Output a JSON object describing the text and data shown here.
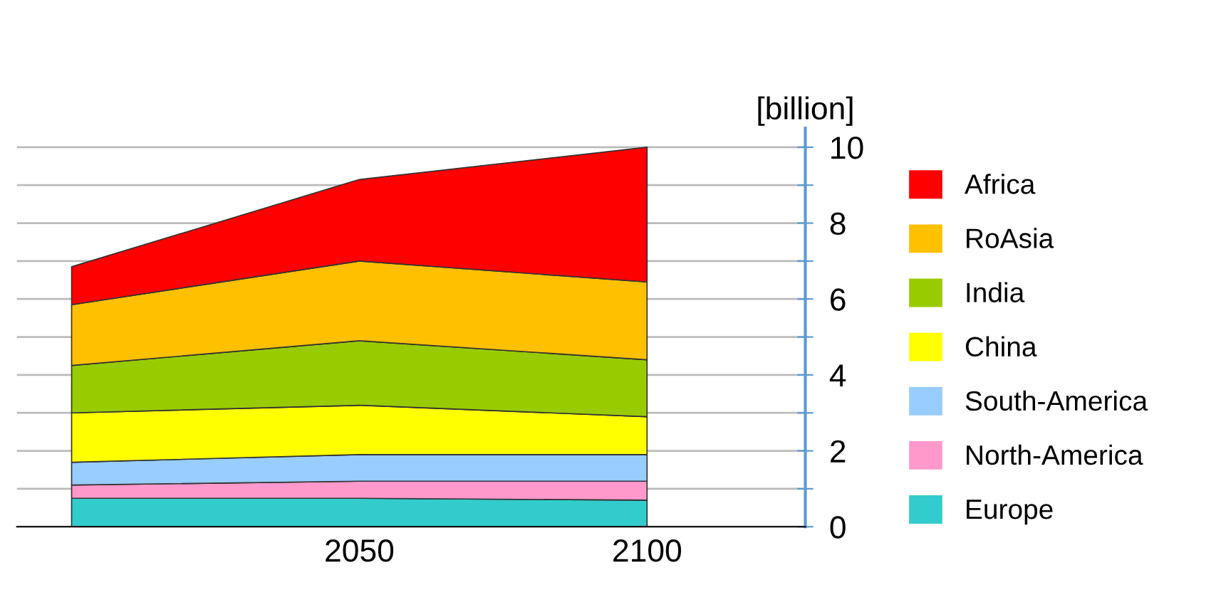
{
  "chart_data": {
    "type": "area",
    "stacked": true,
    "ylabel": "[billion]",
    "categories": [
      null,
      "2050",
      "2100"
    ],
    "series": [
      {
        "name": "Europe",
        "color": "#33cccc",
        "values": [
          0.75,
          0.75,
          0.7
        ]
      },
      {
        "name": "North-America",
        "color": "#ff99cc",
        "values": [
          0.35,
          0.45,
          0.5
        ]
      },
      {
        "name": "South-America",
        "color": "#99ccff",
        "values": [
          0.6,
          0.7,
          0.7
        ]
      },
      {
        "name": "China",
        "color": "#ffff00",
        "values": [
          1.3,
          1.3,
          1.0
        ]
      },
      {
        "name": "India",
        "color": "#99cc00",
        "values": [
          1.25,
          1.7,
          1.5
        ]
      },
      {
        "name": "RoAsia",
        "color": "#ffc000",
        "values": [
          1.6,
          2.1,
          2.05
        ]
      },
      {
        "name": "Africa",
        "color": "#ff0000",
        "values": [
          1.0,
          2.15,
          3.55
        ]
      }
    ],
    "ylim": [
      0,
      10.5
    ],
    "yticks": [
      0,
      {
        "value": 1,
        "label": null
      },
      2,
      {
        "value": 3,
        "label": null
      },
      4,
      {
        "value": 5,
        "label": null
      },
      6,
      {
        "value": 7,
        "label": null
      },
      8,
      {
        "value": 9,
        "label": null
      },
      10
    ],
    "grid": "y",
    "legend": "right"
  }
}
